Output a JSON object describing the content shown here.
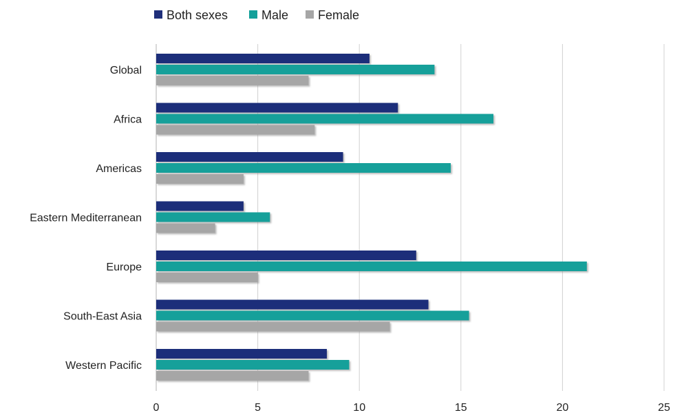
{
  "chart_data": {
    "type": "bar",
    "orientation": "horizontal",
    "categories": [
      "Global",
      "Africa",
      "Americas",
      "Eastern Mediterranean",
      "Europe",
      "South-East Asia",
      "Western Pacific"
    ],
    "series": [
      {
        "name": "Both sexes",
        "color": "#1f2f7a",
        "values": [
          10.5,
          11.9,
          9.2,
          4.3,
          12.8,
          13.4,
          8.4
        ]
      },
      {
        "name": "Male",
        "color": "#13a09a",
        "values": [
          13.7,
          16.6,
          14.5,
          5.6,
          21.2,
          15.4,
          9.5
        ]
      },
      {
        "name": "Female",
        "color": "#a6a6a6",
        "values": [
          7.5,
          7.8,
          4.3,
          2.9,
          5.0,
          11.5,
          7.5
        ]
      }
    ],
    "xlim": [
      0,
      25
    ],
    "xticks": [
      "0",
      "5",
      "10",
      "15",
      "20",
      "25"
    ],
    "grid": true,
    "legend_position": "top-left"
  }
}
